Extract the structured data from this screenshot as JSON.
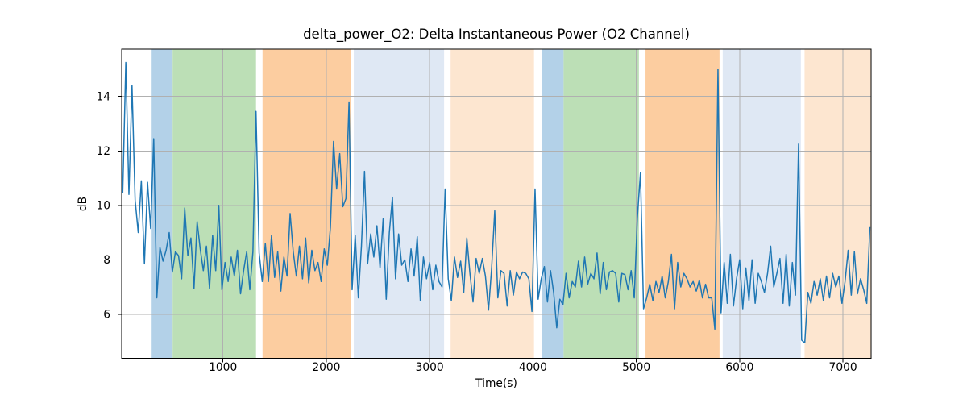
{
  "title": "delta_power_O2: Delta Instantaneous Power (O2 Channel)",
  "axes": {
    "xlabel": "Time(s)",
    "ylabel": "dB",
    "xlim": [
      20,
      7272
    ],
    "ylim": [
      4.38,
      15.74
    ],
    "xticks": [
      1000,
      2000,
      3000,
      4000,
      5000,
      6000,
      7000
    ],
    "yticks": [
      6,
      8,
      10,
      12,
      14
    ],
    "grid": true,
    "grid_color": "#b0b0b0",
    "spine_color": "#000000"
  },
  "band_colors": {
    "blue": "#b3d1e8",
    "green": "#bcdfb6",
    "orange": "#fccda0",
    "lavender": "#dfe8f4",
    "pale_orange": "#fde6d0"
  },
  "bands": [
    {
      "from": 310,
      "to": 513,
      "color": "blue"
    },
    {
      "from": 513,
      "to": 1320,
      "color": "green"
    },
    {
      "from": 1383,
      "to": 2238,
      "color": "orange"
    },
    {
      "from": 2266,
      "to": 3140,
      "color": "lavender"
    },
    {
      "from": 3203,
      "to": 4010,
      "color": "pale_orange"
    },
    {
      "from": 4088,
      "to": 4296,
      "color": "blue"
    },
    {
      "from": 4296,
      "to": 5025,
      "color": "green"
    },
    {
      "from": 5089,
      "to": 5805,
      "color": "orange"
    },
    {
      "from": 5836,
      "to": 6592,
      "color": "lavender"
    },
    {
      "from": 6628,
      "to": 7272,
      "color": "pale_orange"
    }
  ],
  "chart_data": {
    "type": "line",
    "series_name": "delta_power_O2",
    "line_color": "#1f77b4",
    "title": "delta_power_O2: Delta Instantaneous Power (O2 Channel)",
    "xlabel": "Time(s)",
    "ylabel": "dB",
    "x_start": 30,
    "x_step": 30,
    "values": [
      10.45,
      15.25,
      10.4,
      14.4,
      10.2,
      9.0,
      10.9,
      7.85,
      10.85,
      9.15,
      12.45,
      6.6,
      8.45,
      7.95,
      8.35,
      9.0,
      7.55,
      8.3,
      8.15,
      7.3,
      9.9,
      8.15,
      8.8,
      6.95,
      9.4,
      8.4,
      7.6,
      8.5,
      6.95,
      8.9,
      7.6,
      10.0,
      6.9,
      7.9,
      7.2,
      8.1,
      7.4,
      8.35,
      6.75,
      7.6,
      8.3,
      6.9,
      8.3,
      13.45,
      8.25,
      7.2,
      8.6,
      7.2,
      8.9,
      7.35,
      8.3,
      6.85,
      8.1,
      7.4,
      9.7,
      8.3,
      7.4,
      8.5,
      7.3,
      8.8,
      7.15,
      8.35,
      7.6,
      7.9,
      7.2,
      8.4,
      7.8,
      9.2,
      12.35,
      10.6,
      11.9,
      9.95,
      10.25,
      13.8,
      6.9,
      8.9,
      6.6,
      8.5,
      11.25,
      7.85,
      8.95,
      8.1,
      9.25,
      7.7,
      9.5,
      6.55,
      9.0,
      10.3,
      7.3,
      8.95,
      7.8,
      8.0,
      7.2,
      8.4,
      7.4,
      8.85,
      6.5,
      8.1,
      7.3,
      7.9,
      6.9,
      7.8,
      7.2,
      7.0,
      10.6,
      7.3,
      6.5,
      8.1,
      7.35,
      7.95,
      6.8,
      8.8,
      7.5,
      6.45,
      8.05,
      7.5,
      8.05,
      7.4,
      6.15,
      7.7,
      9.8,
      6.6,
      7.6,
      7.5,
      6.3,
      7.6,
      6.7,
      7.55,
      7.3,
      7.55,
      7.5,
      7.3,
      6.1,
      10.6,
      6.55,
      7.3,
      7.75,
      6.45,
      7.6,
      6.8,
      5.5,
      6.55,
      6.35,
      7.5,
      6.6,
      7.2,
      7.0,
      7.95,
      7.0,
      8.1,
      7.1,
      7.5,
      7.3,
      8.25,
      6.75,
      7.9,
      6.9,
      7.55,
      7.6,
      7.5,
      6.45,
      7.5,
      7.45,
      6.9,
      7.6,
      6.6,
      9.55,
      11.2,
      6.2,
      6.6,
      7.1,
      6.5,
      7.2,
      6.8,
      7.4,
      6.6,
      7.2,
      8.2,
      6.2,
      7.9,
      7.0,
      7.5,
      7.3,
      7.0,
      7.2,
      6.85,
      7.25,
      6.6,
      7.1,
      6.6,
      6.6,
      5.45,
      15.0,
      6.05,
      7.9,
      6.4,
      8.2,
      6.3,
      7.3,
      8.0,
      6.2,
      7.7,
      6.5,
      8.0,
      6.4,
      7.5,
      7.2,
      6.8,
      7.5,
      8.5,
      7.0,
      7.5,
      8.05,
      6.4,
      8.2,
      6.3,
      7.9,
      6.7,
      12.25,
      5.05,
      4.95,
      6.8,
      6.4,
      7.2,
      6.7,
      7.3,
      6.5,
      7.4,
      6.6,
      7.5,
      7.0,
      7.4,
      6.4,
      7.2,
      8.35,
      6.7,
      8.3,
      6.75,
      7.3,
      6.9,
      6.4,
      9.2
    ]
  }
}
